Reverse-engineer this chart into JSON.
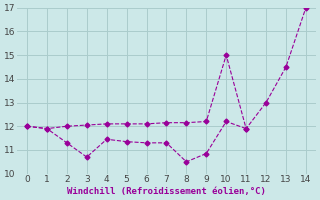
{
  "line1_x": [
    0,
    1,
    2,
    3,
    4,
    5,
    6,
    7,
    8,
    9,
    10,
    11,
    12,
    13,
    14
  ],
  "line1_y": [
    12.0,
    11.9,
    12.0,
    12.05,
    12.1,
    12.1,
    12.1,
    12.15,
    12.15,
    12.2,
    15.0,
    11.9,
    13.0,
    14.5,
    17.0
  ],
  "line2_x": [
    0,
    1,
    2,
    3,
    4,
    5,
    6,
    7,
    8,
    9,
    10,
    11
  ],
  "line2_y": [
    12.0,
    11.9,
    11.3,
    10.7,
    11.45,
    11.35,
    11.3,
    11.3,
    10.5,
    10.85,
    12.2,
    11.9
  ],
  "color": "#990099",
  "xlabel": "Windchill (Refroidissement éolien,°C)",
  "xlim": [
    -0.5,
    14.5
  ],
  "ylim": [
    10,
    17
  ],
  "yticks": [
    10,
    11,
    12,
    13,
    14,
    15,
    16,
    17
  ],
  "xticks": [
    0,
    1,
    2,
    3,
    4,
    5,
    6,
    7,
    8,
    9,
    10,
    11,
    12,
    13,
    14
  ],
  "bg_color": "#cce8e8",
  "grid_color": "#aacccc",
  "figwidth": 3.2,
  "figheight": 2.0,
  "dpi": 100
}
